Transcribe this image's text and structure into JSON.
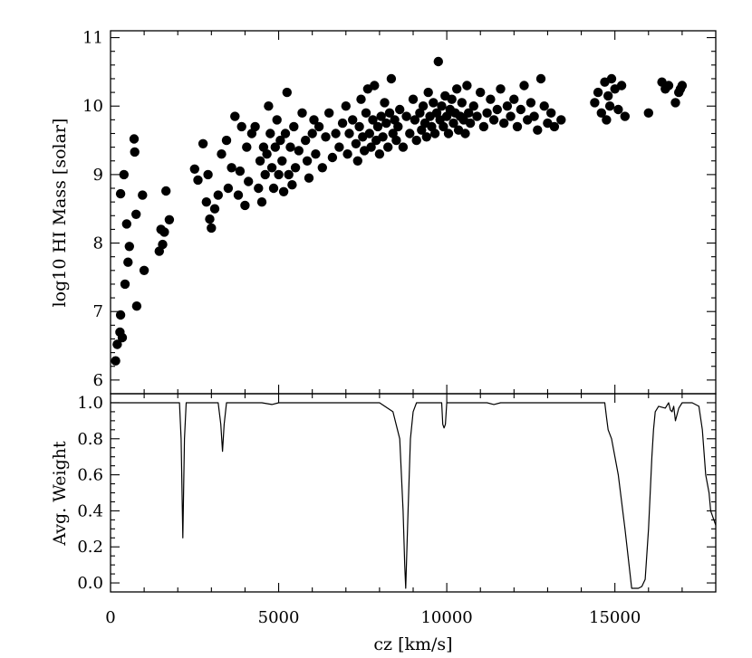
{
  "chart_data": [
    {
      "type": "scatter",
      "title": "",
      "xlabel": "",
      "ylabel": "log10 HI Mass [solar]",
      "xlim": [
        0,
        18000
      ],
      "ylim": [
        5.8,
        11.1
      ],
      "yticks": [
        6,
        7,
        8,
        9,
        10,
        11
      ],
      "marker_color": "#000000",
      "points": [
        [
          150,
          6.28
        ],
        [
          200,
          6.52
        ],
        [
          280,
          6.7
        ],
        [
          300,
          6.95
        ],
        [
          350,
          6.62
        ],
        [
          300,
          8.72
        ],
        [
          400,
          9.0
        ],
        [
          480,
          8.28
        ],
        [
          520,
          7.72
        ],
        [
          560,
          7.95
        ],
        [
          430,
          7.4
        ],
        [
          700,
          9.52
        ],
        [
          720,
          9.33
        ],
        [
          760,
          8.42
        ],
        [
          780,
          7.08
        ],
        [
          950,
          8.7
        ],
        [
          1000,
          7.6
        ],
        [
          1450,
          7.88
        ],
        [
          1500,
          8.2
        ],
        [
          1600,
          8.16
        ],
        [
          1650,
          8.76
        ],
        [
          1750,
          8.34
        ],
        [
          1550,
          7.98
        ],
        [
          2500,
          9.08
        ],
        [
          2600,
          8.92
        ],
        [
          2750,
          9.45
        ],
        [
          2850,
          8.6
        ],
        [
          2900,
          9.0
        ],
        [
          2950,
          8.35
        ],
        [
          3000,
          8.22
        ],
        [
          3100,
          8.5
        ],
        [
          3200,
          8.7
        ],
        [
          3300,
          9.3
        ],
        [
          3450,
          9.5
        ],
        [
          3500,
          8.8
        ],
        [
          3600,
          9.1
        ],
        [
          3700,
          9.85
        ],
        [
          3800,
          8.7
        ],
        [
          3850,
          9.05
        ],
        [
          3900,
          9.7
        ],
        [
          4000,
          8.55
        ],
        [
          4050,
          9.4
        ],
        [
          4100,
          8.9
        ],
        [
          4200,
          9.6
        ],
        [
          4300,
          9.7
        ],
        [
          4400,
          8.8
        ],
        [
          4450,
          9.2
        ],
        [
          4500,
          8.6
        ],
        [
          4550,
          9.4
        ],
        [
          4600,
          9.0
        ],
        [
          4650,
          9.3
        ],
        [
          4700,
          10.0
        ],
        [
          4750,
          9.6
        ],
        [
          4800,
          9.1
        ],
        [
          4850,
          8.8
        ],
        [
          4900,
          9.4
        ],
        [
          4950,
          9.8
        ],
        [
          5000,
          9.0
        ],
        [
          5050,
          9.5
        ],
        [
          5100,
          9.2
        ],
        [
          5150,
          8.75
        ],
        [
          5200,
          9.6
        ],
        [
          5250,
          10.2
        ],
        [
          5300,
          9.0
        ],
        [
          5350,
          9.4
        ],
        [
          5400,
          8.85
        ],
        [
          5450,
          9.7
        ],
        [
          5500,
          9.1
        ],
        [
          5600,
          9.35
        ],
        [
          5700,
          9.9
        ],
        [
          5800,
          9.5
        ],
        [
          5850,
          9.2
        ],
        [
          5900,
          8.95
        ],
        [
          6000,
          9.6
        ],
        [
          6050,
          9.8
        ],
        [
          6100,
          9.3
        ],
        [
          6200,
          9.7
        ],
        [
          6300,
          9.1
        ],
        [
          6400,
          9.55
        ],
        [
          6500,
          9.9
        ],
        [
          6600,
          9.25
        ],
        [
          6700,
          9.6
        ],
        [
          6800,
          9.4
        ],
        [
          6900,
          9.75
        ],
        [
          7000,
          10.0
        ],
        [
          7050,
          9.3
        ],
        [
          7100,
          9.6
        ],
        [
          7200,
          9.8
        ],
        [
          7300,
          9.45
        ],
        [
          7350,
          9.2
        ],
        [
          7400,
          9.7
        ],
        [
          7450,
          10.1
        ],
        [
          7500,
          9.55
        ],
        [
          7550,
          9.35
        ],
        [
          7600,
          9.9
        ],
        [
          7650,
          10.25
        ],
        [
          7700,
          9.6
        ],
        [
          7750,
          9.4
        ],
        [
          7800,
          9.8
        ],
        [
          7850,
          10.3
        ],
        [
          7900,
          9.5
        ],
        [
          7950,
          9.7
        ],
        [
          8000,
          9.3
        ],
        [
          8050,
          9.85
        ],
        [
          8100,
          9.55
        ],
        [
          8150,
          10.05
        ],
        [
          8200,
          9.75
        ],
        [
          8250,
          9.4
        ],
        [
          8300,
          9.9
        ],
        [
          8350,
          10.4
        ],
        [
          8400,
          9.6
        ],
        [
          8450,
          9.8
        ],
        [
          8500,
          9.5
        ],
        [
          8550,
          9.7
        ],
        [
          8600,
          9.95
        ],
        [
          8700,
          9.4
        ],
        [
          8800,
          9.85
        ],
        [
          8900,
          9.6
        ],
        [
          9000,
          10.1
        ],
        [
          9050,
          9.8
        ],
        [
          9100,
          9.5
        ],
        [
          9200,
          9.9
        ],
        [
          9250,
          9.65
        ],
        [
          9300,
          10.0
        ],
        [
          9350,
          9.75
        ],
        [
          9400,
          9.55
        ],
        [
          9450,
          10.2
        ],
        [
          9500,
          9.85
        ],
        [
          9550,
          9.7
        ],
        [
          9600,
          10.05
        ],
        [
          9650,
          9.6
        ],
        [
          9700,
          9.9
        ],
        [
          9750,
          10.65
        ],
        [
          9800,
          9.8
        ],
        [
          9850,
          10.0
        ],
        [
          9900,
          9.7
        ],
        [
          9950,
          10.15
        ],
        [
          10000,
          9.85
        ],
        [
          10050,
          9.6
        ],
        [
          10100,
          9.95
        ],
        [
          10150,
          10.1
        ],
        [
          10200,
          9.75
        ],
        [
          10250,
          9.9
        ],
        [
          10300,
          10.25
        ],
        [
          10350,
          9.65
        ],
        [
          10400,
          9.85
        ],
        [
          10450,
          10.05
        ],
        [
          10500,
          9.8
        ],
        [
          10550,
          9.6
        ],
        [
          10600,
          10.3
        ],
        [
          10650,
          9.9
        ],
        [
          10700,
          9.75
        ],
        [
          10800,
          10.0
        ],
        [
          10900,
          9.85
        ],
        [
          11000,
          10.2
        ],
        [
          11100,
          9.7
        ],
        [
          11200,
          9.9
        ],
        [
          11300,
          10.1
        ],
        [
          11400,
          9.8
        ],
        [
          11500,
          9.95
        ],
        [
          11600,
          10.25
        ],
        [
          11700,
          9.75
        ],
        [
          11800,
          10.0
        ],
        [
          11900,
          9.85
        ],
        [
          12000,
          10.1
        ],
        [
          12100,
          9.7
        ],
        [
          12200,
          9.95
        ],
        [
          12300,
          10.3
        ],
        [
          12400,
          9.8
        ],
        [
          12500,
          10.05
        ],
        [
          12600,
          9.85
        ],
        [
          12700,
          9.65
        ],
        [
          12800,
          10.4
        ],
        [
          12900,
          10.0
        ],
        [
          13000,
          9.75
        ],
        [
          13100,
          9.9
        ],
        [
          13200,
          9.7
        ],
        [
          13400,
          9.8
        ],
        [
          14400,
          10.05
        ],
        [
          14500,
          10.2
        ],
        [
          14600,
          9.9
        ],
        [
          14700,
          10.35
        ],
        [
          14750,
          9.8
        ],
        [
          14800,
          10.15
        ],
        [
          14850,
          10.0
        ],
        [
          14900,
          10.4
        ],
        [
          15000,
          10.25
        ],
        [
          15100,
          9.95
        ],
        [
          15200,
          10.3
        ],
        [
          15300,
          9.85
        ],
        [
          16000,
          9.9
        ],
        [
          16400,
          10.35
        ],
        [
          16500,
          10.25
        ],
        [
          16600,
          10.3
        ],
        [
          16800,
          10.05
        ],
        [
          16900,
          10.2
        ],
        [
          17000,
          10.3
        ],
        [
          16950,
          10.25
        ]
      ]
    },
    {
      "type": "line",
      "title": "",
      "xlabel": "cz [km/s]",
      "ylabel": "Avg. Weight",
      "xlim": [
        0,
        18000
      ],
      "ylim": [
        -0.05,
        1.05
      ],
      "xticks": [
        0,
        5000,
        10000,
        15000
      ],
      "yticks": [
        0.0,
        0.2,
        0.4,
        0.6,
        0.8,
        1.0
      ],
      "line_color": "#000000",
      "x": [
        0,
        2050,
        2100,
        2150,
        2200,
        2250,
        2300,
        3200,
        3280,
        3330,
        3380,
        3450,
        4500,
        4800,
        5000,
        8000,
        8400,
        8600,
        8700,
        8750,
        8780,
        8850,
        8920,
        9000,
        9100,
        9300,
        9850,
        9880,
        9920,
        9960,
        10000,
        10050,
        11200,
        11400,
        11600,
        14700,
        14750,
        14800,
        14900,
        15100,
        15300,
        15500,
        15700,
        15800,
        15900,
        16000,
        16100,
        16150,
        16200,
        16300,
        16500,
        16600,
        16650,
        16700,
        16750,
        16800,
        16900,
        17000,
        17300,
        17500,
        17600,
        17700,
        17800,
        17850,
        18000
      ],
      "y": [
        1.0,
        1.0,
        0.8,
        0.25,
        0.8,
        1.0,
        1.0,
        1.0,
        0.88,
        0.73,
        0.88,
        1.0,
        1.0,
        0.99,
        1.0,
        1.0,
        0.95,
        0.8,
        0.4,
        0.1,
        -0.03,
        0.4,
        0.8,
        0.95,
        1.0,
        1.0,
        1.0,
        0.88,
        0.86,
        0.88,
        1.0,
        1.0,
        1.0,
        0.99,
        1.0,
        1.0,
        0.92,
        0.85,
        0.8,
        0.6,
        0.3,
        -0.03,
        -0.03,
        -0.02,
        0.02,
        0.3,
        0.7,
        0.85,
        0.95,
        0.98,
        0.97,
        1.0,
        0.96,
        0.95,
        0.98,
        0.9,
        0.97,
        1.0,
        1.0,
        0.98,
        0.85,
        0.6,
        0.5,
        0.4,
        0.32
      ]
    }
  ],
  "x_tick_labels": [
    "0",
    "5000",
    "10000",
    "15000"
  ],
  "top_y_tick_labels": [
    "6",
    "7",
    "8",
    "9",
    "10",
    "11"
  ],
  "bottom_y_tick_labels": [
    "0.0",
    "0.2",
    "0.4",
    "0.6",
    "0.8",
    "1.0"
  ]
}
